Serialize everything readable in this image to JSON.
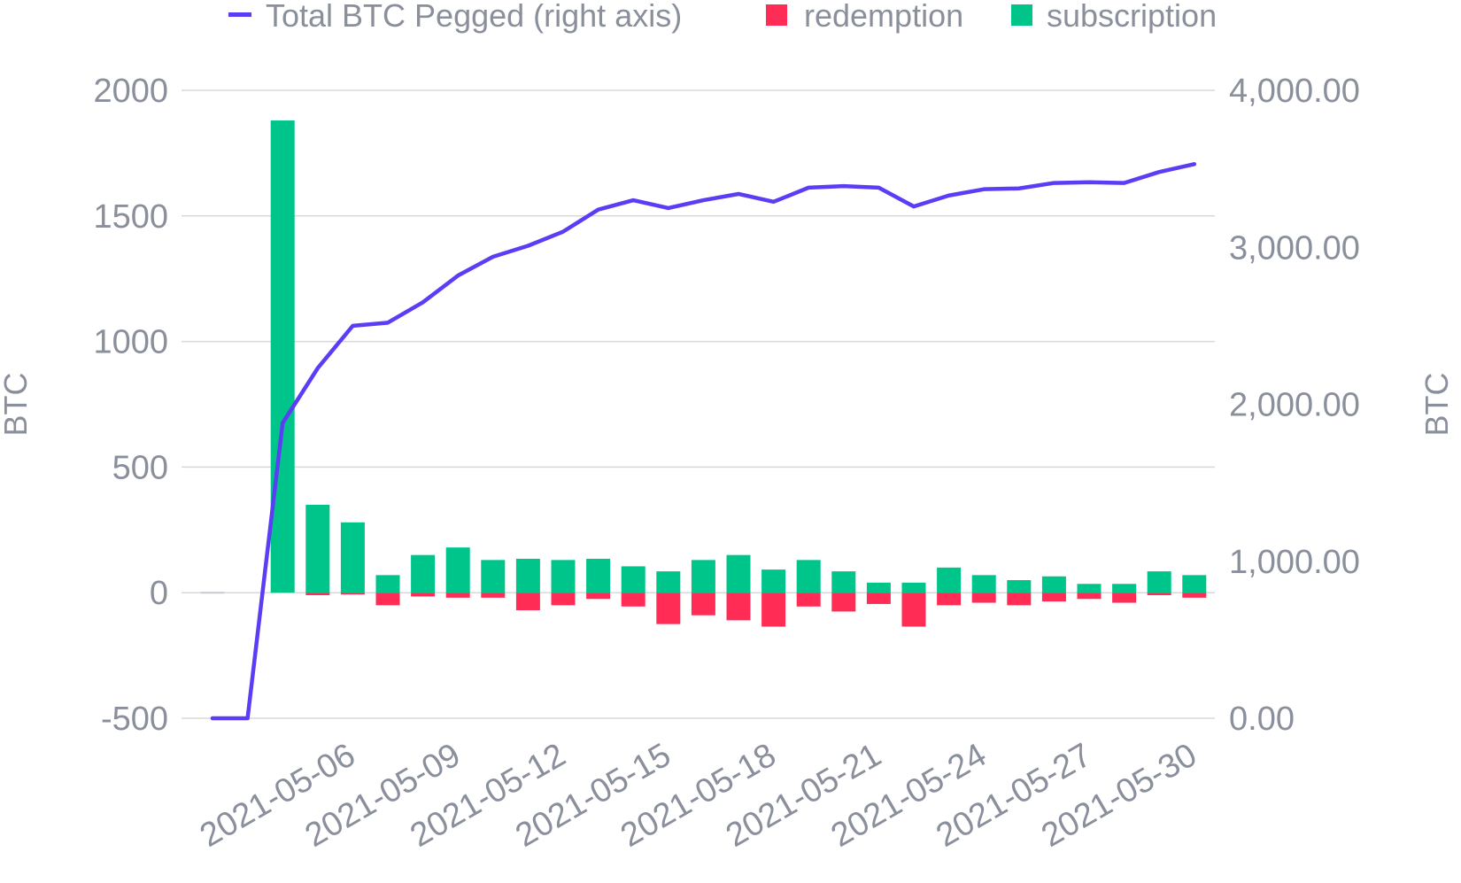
{
  "chart_data": {
    "type": "bar",
    "legend": {
      "placement": "top",
      "items": [
        {
          "label": "Total BTC Pegged (right axis)",
          "color": "#5b3df5",
          "kind": "line"
        },
        {
          "label": "redemption",
          "color": "#ff2d55",
          "kind": "bar"
        },
        {
          "label": "subscription",
          "color": "#00c58a",
          "kind": "bar"
        }
      ]
    },
    "left_axis": {
      "label": "BTC",
      "range": [
        -500,
        2000
      ],
      "ticks": [
        "2000",
        "1500",
        "1000",
        "500",
        "0",
        "-500"
      ],
      "tick_values": [
        2000,
        1500,
        1000,
        500,
        0,
        -500
      ]
    },
    "right_axis": {
      "label": "BTC",
      "range": [
        0,
        4000
      ],
      "ticks": [
        "4,000.00",
        "3,000.00",
        "2,000.00",
        "1,000.00",
        "0.00"
      ],
      "tick_values": [
        4000,
        3000,
        2000,
        1000,
        0
      ]
    },
    "x_tick_labels": [
      "2021-05-06",
      "2021-05-09",
      "2021-05-12",
      "2021-05-15",
      "2021-05-18",
      "2021-05-21",
      "2021-05-24",
      "2021-05-27",
      "2021-05-30"
    ],
    "x": [
      "2021-05-03",
      "2021-05-04",
      "2021-05-05",
      "2021-05-06",
      "2021-05-07",
      "2021-05-08",
      "2021-05-09",
      "2021-05-10",
      "2021-05-11",
      "2021-05-12",
      "2021-05-13",
      "2021-05-14",
      "2021-05-15",
      "2021-05-16",
      "2021-05-17",
      "2021-05-18",
      "2021-05-19",
      "2021-05-20",
      "2021-05-21",
      "2021-05-22",
      "2021-05-23",
      "2021-05-24",
      "2021-05-25",
      "2021-05-26",
      "2021-05-27",
      "2021-05-28",
      "2021-05-29",
      "2021-05-30",
      "2021-05-31"
    ],
    "series": [
      {
        "name": "subscription",
        "axis": "left",
        "type": "bar",
        "values": [
          0,
          0,
          1880,
          350,
          280,
          70,
          150,
          180,
          130,
          135,
          130,
          135,
          105,
          85,
          130,
          150,
          92,
          130,
          85,
          40,
          40,
          100,
          70,
          50,
          65,
          35,
          35,
          85,
          70
        ]
      },
      {
        "name": "redemption",
        "axis": "left",
        "type": "bar",
        "values": [
          0,
          0,
          0,
          -10,
          -5,
          -50,
          -15,
          -20,
          -20,
          -70,
          -50,
          -25,
          -55,
          -125,
          -90,
          -110,
          -135,
          -55,
          -75,
          -45,
          -135,
          -50,
          -40,
          -50,
          -35,
          -25,
          -40,
          -10,
          -20
        ]
      },
      {
        "name": "Total BTC Pegged (right axis)",
        "axis": "right",
        "type": "line",
        "values": [
          0,
          0,
          1880,
          2230,
          2500,
          2520,
          2650,
          2820,
          2940,
          3010,
          3100,
          3240,
          3300,
          3250,
          3300,
          3340,
          3290,
          3380,
          3390,
          3380,
          3260,
          3330,
          3370,
          3375,
          3410,
          3415,
          3410,
          3480,
          3530
        ]
      }
    ],
    "grid": true
  }
}
